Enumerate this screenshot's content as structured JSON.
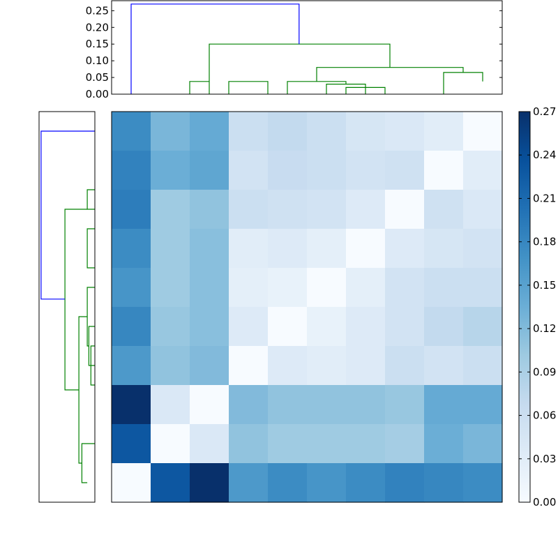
{
  "chart_data": [
    {
      "type": "dendrogram",
      "orientation": "top",
      "title": "",
      "xlabel": "",
      "ylabel": "",
      "ylim": [
        0,
        0.28
      ],
      "yticks": [
        "0.00",
        "0.05",
        "0.10",
        "0.15",
        "0.20",
        "0.25"
      ],
      "yticks_values": [
        0,
        0.05,
        0.1,
        0.15,
        0.2,
        0.25
      ],
      "n_leaves": 10,
      "links": [
        {
          "x": [
            4,
            4,
            5,
            5
          ],
          "y": [
            0,
            0.038,
            0.038,
            0
          ],
          "color": "#008000"
        },
        {
          "x": [
            6,
            6,
            8,
            8
          ],
          "y": [
            0,
            0.038,
            0.038,
            0
          ],
          "color": "#008000"
        },
        {
          "x": [
            12,
            12,
            14,
            14
          ],
          "y": [
            0,
            0.02,
            0.02,
            0
          ],
          "color": "#008000"
        },
        {
          "x": [
            11,
            11,
            13,
            13
          ],
          "y": [
            0,
            0.03,
            0.03,
            0
          ],
          "color": "#008000"
        },
        {
          "x": [
            9,
            9,
            12,
            12
          ],
          "y": [
            0,
            0.038,
            0.038,
            0.03
          ],
          "color": "#008000"
        },
        {
          "x": [
            17,
            17,
            19,
            19
          ],
          "y": [
            0,
            0.065,
            0.065,
            0.038
          ],
          "color": "#008000"
        },
        {
          "x": [
            10.5,
            10.5,
            18,
            18
          ],
          "y": [
            0.038,
            0.08,
            0.08,
            0.065
          ],
          "color": "#008000"
        },
        {
          "x": [
            5,
            5,
            14.25,
            14.25
          ],
          "y": [
            0.038,
            0.15,
            0.15,
            0.08
          ],
          "color": "#008000"
        },
        {
          "x": [
            1,
            1,
            9.6,
            9.6
          ],
          "y": [
            0,
            0.27,
            0.27,
            0.15
          ],
          "color": "#0000ff"
        }
      ]
    },
    {
      "type": "dendrogram",
      "orientation": "left",
      "title": "",
      "xlabel": "",
      "ylabel": "",
      "xlim": [
        0.28,
        0
      ],
      "n_leaves": 10,
      "links": [
        {
          "x": [
            0,
            0.038,
            0.038,
            0
          ],
          "y": [
            4,
            4,
            5,
            5
          ],
          "color": "#008000"
        },
        {
          "x": [
            0,
            0.038,
            0.038,
            0
          ],
          "y": [
            6,
            6,
            8,
            8
          ],
          "color": "#008000"
        },
        {
          "x": [
            0,
            0.02,
            0.02,
            0
          ],
          "y": [
            12,
            12,
            14,
            14
          ],
          "color": "#008000"
        },
        {
          "x": [
            0,
            0.03,
            0.03,
            0
          ],
          "y": [
            11,
            11,
            13,
            13
          ],
          "color": "#008000"
        },
        {
          "x": [
            0,
            0.038,
            0.038,
            0.03
          ],
          "y": [
            9,
            9,
            12,
            12
          ],
          "color": "#008000"
        },
        {
          "x": [
            0,
            0.065,
            0.065,
            0.038
          ],
          "y": [
            17,
            17,
            19,
            19
          ],
          "color": "#008000"
        },
        {
          "x": [
            0.038,
            0.08,
            0.08,
            0.065
          ],
          "y": [
            10.5,
            10.5,
            18,
            18
          ],
          "color": "#008000"
        },
        {
          "x": [
            0.038,
            0.15,
            0.15,
            0.08
          ],
          "y": [
            5,
            5,
            14.25,
            14.25
          ],
          "color": "#008000"
        },
        {
          "x": [
            0,
            0.27,
            0.27,
            0.15
          ],
          "y": [
            1,
            1,
            9.6,
            9.6
          ],
          "color": "#0000ff"
        }
      ]
    },
    {
      "type": "heatmap",
      "title": "",
      "xlabel": "",
      "ylabel": "",
      "colormap": "Blues",
      "vmin": 0,
      "vmax": 0.27,
      "colorbar_ticks": [
        "0.00",
        "0.03",
        "0.06",
        "0.09",
        "0.12",
        "0.15",
        "0.18",
        "0.21",
        "0.24",
        "0.27"
      ],
      "colorbar_values": [
        0,
        0.03,
        0.06,
        0.09,
        0.12,
        0.15,
        0.18,
        0.21,
        0.24,
        0.27
      ],
      "rows": 10,
      "cols": 10,
      "values": [
        [
          0.175,
          0.125,
          0.14,
          0.06,
          0.07,
          0.06,
          0.045,
          0.04,
          0.03,
          0.0
        ],
        [
          0.185,
          0.135,
          0.145,
          0.05,
          0.065,
          0.06,
          0.05,
          0.055,
          0.0,
          0.03
        ],
        [
          0.19,
          0.1,
          0.11,
          0.06,
          0.055,
          0.05,
          0.035,
          0.0,
          0.055,
          0.04
        ],
        [
          0.175,
          0.1,
          0.115,
          0.03,
          0.035,
          0.025,
          0.0,
          0.035,
          0.045,
          0.05
        ],
        [
          0.165,
          0.1,
          0.115,
          0.025,
          0.02,
          0.0,
          0.025,
          0.05,
          0.06,
          0.06
        ],
        [
          0.18,
          0.105,
          0.115,
          0.035,
          0.0,
          0.02,
          0.035,
          0.05,
          0.07,
          0.08
        ],
        [
          0.16,
          0.11,
          0.12,
          0.0,
          0.035,
          0.03,
          0.035,
          0.06,
          0.05,
          0.06
        ],
        [
          0.27,
          0.04,
          0.0,
          0.12,
          0.11,
          0.11,
          0.11,
          0.105,
          0.14,
          0.14
        ],
        [
          0.23,
          0.0,
          0.04,
          0.11,
          0.1,
          0.1,
          0.1,
          0.095,
          0.135,
          0.125
        ],
        [
          0.0,
          0.23,
          0.27,
          0.16,
          0.175,
          0.165,
          0.175,
          0.185,
          0.18,
          0.175
        ]
      ]
    }
  ]
}
